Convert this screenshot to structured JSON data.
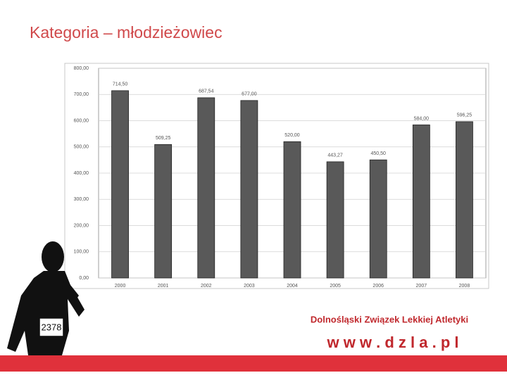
{
  "chart_data": {
    "type": "bar",
    "title": "Kategoria – młodzieżowiec",
    "categories": [
      "2000",
      "2001",
      "2002",
      "2003",
      "2004",
      "2005",
      "2006",
      "2007",
      "2008"
    ],
    "values": [
      714.5,
      509.25,
      687.54,
      677.0,
      520.0,
      443.27,
      450.5,
      584.0,
      596.25
    ],
    "value_labels": [
      "714,50",
      "509,25",
      "687,54",
      "677,00",
      "520,00",
      "443,27",
      "450,50",
      "584,00",
      "596,25"
    ],
    "color": "#595959",
    "ylim": [
      0,
      800
    ],
    "yticks": [
      {
        "value": 0,
        "label": "0,00"
      },
      {
        "value": 100,
        "label": "100,00"
      },
      {
        "value": 200,
        "label": "200,00"
      },
      {
        "value": 300,
        "label": "300,00"
      },
      {
        "value": 400,
        "label": "400,00"
      },
      {
        "value": 500,
        "label": "500,00"
      },
      {
        "value": 600,
        "label": "600,00"
      },
      {
        "value": 700,
        "label": "700,00"
      },
      {
        "value": 800,
        "label": "800,00"
      }
    ],
    "grid": true,
    "organization": "Dolnośląski Związek Lekkiej Atletyki",
    "website": "w w w . d z l a . p l",
    "bib_number": "2378"
  }
}
